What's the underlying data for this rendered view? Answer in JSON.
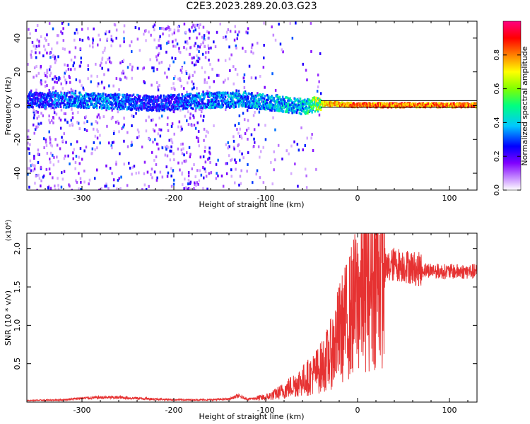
{
  "figure_title": "C2E3.2023.289.20.03.G23",
  "chart_data": [
    {
      "type": "heatmap",
      "title": "",
      "xlabel": "Height of straight line (km)",
      "ylabel": "Frequency (Hz)",
      "xlim": [
        -360,
        130
      ],
      "ylim": [
        -50,
        50
      ],
      "x_ticks": [
        -300,
        -200,
        -100,
        0,
        100
      ],
      "y_ticks": [
        -40,
        -20,
        0,
        20,
        40
      ],
      "colorbar": {
        "label": "Normalized spectral amplitude",
        "range": [
          0,
          1
        ],
        "ticks": [
          0.0,
          0.2,
          0.4,
          0.6,
          0.8
        ],
        "colors": [
          "#ffffff",
          "#8000ff",
          "#0000ff",
          "#00c8ff",
          "#00ff80",
          "#80ff00",
          "#ffff00",
          "#ff8000",
          "#ff0000",
          "#ff0080"
        ]
      },
      "ridge": [
        {
          "x": -330,
          "frequency": 4,
          "amplitude": 0.35
        },
        {
          "x": -300,
          "frequency": 4,
          "amplitude": 0.4
        },
        {
          "x": -260,
          "frequency": 3,
          "amplitude": 0.38
        },
        {
          "x": -220,
          "frequency": 2,
          "amplitude": 0.3
        },
        {
          "x": -160,
          "frequency": 4,
          "amplitude": 0.4
        },
        {
          "x": -120,
          "frequency": 4,
          "amplitude": 0.42
        },
        {
          "x": -90,
          "frequency": 2,
          "amplitude": 0.45
        },
        {
          "x": -60,
          "frequency": 0,
          "amplitude": 0.45
        },
        {
          "x": -40,
          "frequency": 2,
          "amplitude": 0.75
        },
        {
          "x": 0,
          "frequency": 1,
          "amplitude": 0.85
        },
        {
          "x": 50,
          "frequency": 1,
          "amplitude": 0.85
        },
        {
          "x": 130,
          "frequency": 1,
          "amplitude": 0.85
        }
      ]
    },
    {
      "type": "line",
      "title": "",
      "xlabel": "Height of straight line (km)",
      "ylabel": "SNR (10 * v/v)",
      "y_multiplier": "(x10⁴)",
      "xlim": [
        -360,
        130
      ],
      "ylim": [
        0,
        2.2
      ],
      "x_ticks": [
        -300,
        -200,
        -100,
        0,
        100
      ],
      "y_ticks": [
        0.5,
        1.0,
        1.5,
        2.0
      ],
      "color": "#e63232",
      "series": [
        {
          "x": [
            -360,
            -320,
            -300,
            -280,
            -260,
            -240,
            -220,
            -200,
            -180,
            -160,
            -140,
            -130,
            -120,
            -110,
            -100,
            -90,
            -80,
            -70,
            -60,
            -50,
            -40,
            -30,
            -20,
            -10,
            0,
            10,
            20,
            30,
            40,
            50,
            60,
            70,
            80,
            90,
            100,
            110,
            120,
            130
          ],
          "values": [
            0.02,
            0.03,
            0.05,
            0.06,
            0.06,
            0.05,
            0.04,
            0.03,
            0.03,
            0.03,
            0.04,
            0.08,
            0.04,
            0.05,
            0.06,
            0.1,
            0.15,
            0.22,
            0.28,
            0.35,
            0.45,
            0.6,
            0.9,
            1.1,
            1.35,
            1.55,
            1.65,
            1.72,
            1.8,
            1.78,
            1.75,
            1.72,
            1.72,
            1.7,
            1.7,
            1.7,
            1.7,
            1.7
          ]
        }
      ]
    }
  ]
}
